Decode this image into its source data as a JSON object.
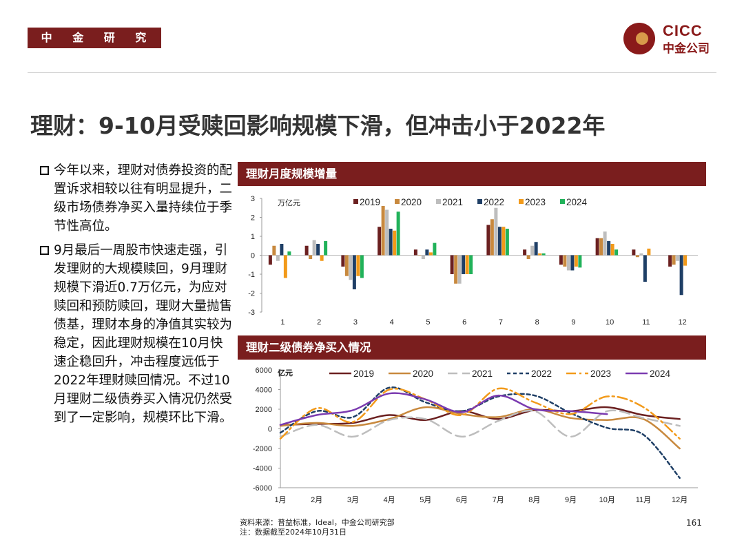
{
  "header": {
    "dept_tag": "中 金 研 究 部",
    "logo": {
      "line1": "CICC",
      "line2": "中金公司"
    },
    "colors": {
      "brand": "#7a1e1e",
      "logo": "#8a1a1a"
    }
  },
  "title": "理财：9-10月受赎回影响规模下滑，但冲击小于2022年",
  "bullets": [
    "今年以来，理财对债券投资的配置诉求相较以往有明显提升，二级市场债券净买入量持续位于季节性高位。",
    "9月最后一周股市快速走强，引发理财的大规模赎回，9月理财规模下滑近0.7万亿元，为应对赎回和预防赎回，理财大量抛售债基，理财本身的净值其实较为稳定，因此理财规模在10月快速企稳回升，冲击程度远低于2022年理财赎回情况。不过10月理财二级债券买入情况仍然受到了一定影响，规模环比下滑。"
  ],
  "footer": {
    "source": "资料来源：普益标准，Ideal，中金公司研究部",
    "note": "注：数据截至2024年10月31日",
    "page": "161"
  },
  "chart_data": [
    {
      "type": "bar",
      "title": "理财月度规模增量",
      "unit_label": "万亿元",
      "categories": [
        "1",
        "2",
        "3",
        "4",
        "5",
        "6",
        "7",
        "8",
        "9",
        "10",
        "11",
        "12"
      ],
      "ylim": [
        -3,
        3
      ],
      "yticks": [
        3,
        2,
        1,
        0,
        -1,
        -2,
        -3
      ],
      "legend_position": "top",
      "series": [
        {
          "name": "2019",
          "color": "#6b2020",
          "values": [
            -0.5,
            0.5,
            -0.6,
            1.5,
            0.3,
            -1.0,
            1.6,
            0.3,
            -0.5,
            0.9,
            0.3,
            -0.6
          ]
        },
        {
          "name": "2020",
          "color": "#c8893e",
          "values": [
            0.5,
            -0.2,
            -1.1,
            2.6,
            0.0,
            -1.5,
            1.9,
            -0.2,
            -0.6,
            0.9,
            -0.1,
            -0.5
          ]
        },
        {
          "name": "2021",
          "color": "#bdbdbd",
          "values": [
            -0.3,
            0.8,
            -1.3,
            2.4,
            -0.2,
            -1.5,
            2.5,
            0.5,
            -0.8,
            1.25,
            0.1,
            -0.3
          ]
        },
        {
          "name": "2022",
          "color": "#1f3f66",
          "values": [
            0.6,
            0.6,
            -1.8,
            1.4,
            0.3,
            -1.0,
            1.5,
            0.7,
            -0.8,
            0.75,
            -1.4,
            -2.1
          ]
        },
        {
          "name": "2023",
          "color": "#f29a1a",
          "values": [
            -1.2,
            -0.3,
            -1.1,
            1.3,
            0.15,
            -1.0,
            1.5,
            0.1,
            -0.6,
            0.6,
            0.35,
            -0.55
          ]
        },
        {
          "name": "2024",
          "color": "#21b25a",
          "values": [
            0.2,
            0.75,
            -1.2,
            2.3,
            0.65,
            -1.0,
            1.4,
            0.1,
            -0.65,
            0.3,
            null,
            null
          ]
        }
      ]
    },
    {
      "type": "line",
      "title": "理财二级债券净买入情况",
      "unit_label": "亿元",
      "categories": [
        "1月",
        "2月",
        "3月",
        "4月",
        "5月",
        "6月",
        "7月",
        "8月",
        "9月",
        "10月",
        "11月",
        "12月"
      ],
      "ylim": [
        -6000,
        6000
      ],
      "yticks": [
        6000,
        4000,
        2000,
        0,
        -2000,
        -4000,
        -6000
      ],
      "legend_position": "top",
      "series": [
        {
          "name": "2019",
          "color": "#6b2020",
          "dash": "",
          "values": [
            400,
            500,
            600,
            1400,
            900,
            1800,
            1000,
            1900,
            1800,
            2200,
            1400,
            1000
          ]
        },
        {
          "name": "2020",
          "color": "#c8893e",
          "dash": "",
          "values": [
            300,
            600,
            300,
            1000,
            2200,
            1500,
            1200,
            2000,
            1100,
            900,
            1000,
            -2000
          ]
        },
        {
          "name": "2021",
          "color": "#bdbdbd",
          "dash": "14,7",
          "values": [
            -800,
            400,
            -800,
            900,
            1000,
            -800,
            800,
            1800,
            -800,
            1800,
            1100,
            300
          ]
        },
        {
          "name": "2022",
          "color": "#1f3f66",
          "dash": "5,4",
          "values": [
            -400,
            1800,
            1200,
            4200,
            2700,
            1800,
            3300,
            3400,
            1600,
            100,
            -600,
            -5000
          ]
        },
        {
          "name": "2023",
          "color": "#f29a1a",
          "dash": "14,5,3,5",
          "values": [
            -1000,
            2100,
            700,
            4000,
            3000,
            1400,
            4100,
            2700,
            1500,
            3300,
            2200,
            -1000
          ]
        },
        {
          "name": "2024",
          "color": "#7b3bb0",
          "dash": "",
          "values": [
            400,
            1400,
            1900,
            3600,
            3000,
            1700,
            3400,
            2000,
            1800,
            1500,
            null,
            null
          ]
        }
      ]
    }
  ]
}
